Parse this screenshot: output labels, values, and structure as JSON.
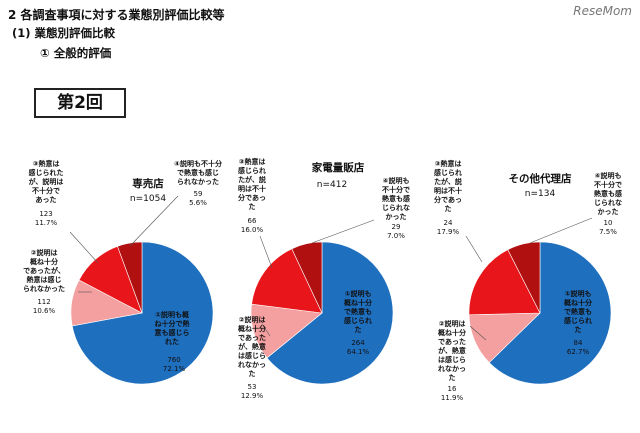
{
  "heading": {
    "section": "2 各調査事項に対する業態別評価比較等",
    "subsection": "(1) 業態別評価比較",
    "item": "① 全般的評価"
  },
  "watermark": "ReseMom",
  "round_label": "第2回",
  "chart_data": [
    {
      "type": "pie",
      "title": "専売店",
      "n_label": "n=1054",
      "slices": [
        {
          "label": "①説明も概ね十分で熱意も感じられた",
          "count": 760,
          "pct": 72.1,
          "color": "#1f6fbf"
        },
        {
          "label": "②説明は概ね十分であったが、熱意は感じられなかった",
          "count": 112,
          "pct": 10.6,
          "color": "#f4a0a0"
        },
        {
          "label": "③熱意は感じられたが、説明は不十分であった",
          "count": 123,
          "pct": 11.7,
          "color": "#e8161b"
        },
        {
          "label": "④説明も不十分で熱意も感じられなかった",
          "count": 59,
          "pct": 5.6,
          "color": "#b01010"
        }
      ]
    },
    {
      "type": "pie",
      "title": "家電量販店",
      "n_label": "n=412",
      "slices": [
        {
          "label": "①説明も概ね十分で熱意も感じられた",
          "count": 264,
          "pct": 64.1,
          "color": "#1f6fbf"
        },
        {
          "label": "②説明は概ね十分であったが、熱意は感じられなかった",
          "count": 53,
          "pct": 12.9,
          "color": "#f4a0a0"
        },
        {
          "label": "③熱意は感じられたが、説明は不十分であった",
          "count": 66,
          "pct": 16.0,
          "color": "#e8161b"
        },
        {
          "label": "④説明も不十分で熱意も感じられなかった",
          "count": 29,
          "pct": 7.0,
          "color": "#b01010"
        }
      ]
    },
    {
      "type": "pie",
      "title": "その他代理店",
      "n_label": "n=134",
      "slices": [
        {
          "label": "①説明も概ね十分で熱意も感じられた",
          "count": 84,
          "pct": 62.7,
          "color": "#1f6fbf"
        },
        {
          "label": "②説明は概ね十分であったが、熱意は感じられなかった",
          "count": 16,
          "pct": 11.9,
          "color": "#f4a0a0"
        },
        {
          "label": "③熱意は感じられたが、説明は不十分であった",
          "count": 24,
          "pct": 17.9,
          "color": "#e8161b"
        },
        {
          "label": "④説明も不十分で熱意も感じられなかった",
          "count": 10,
          "pct": 7.5,
          "color": "#b01010"
        }
      ]
    }
  ]
}
